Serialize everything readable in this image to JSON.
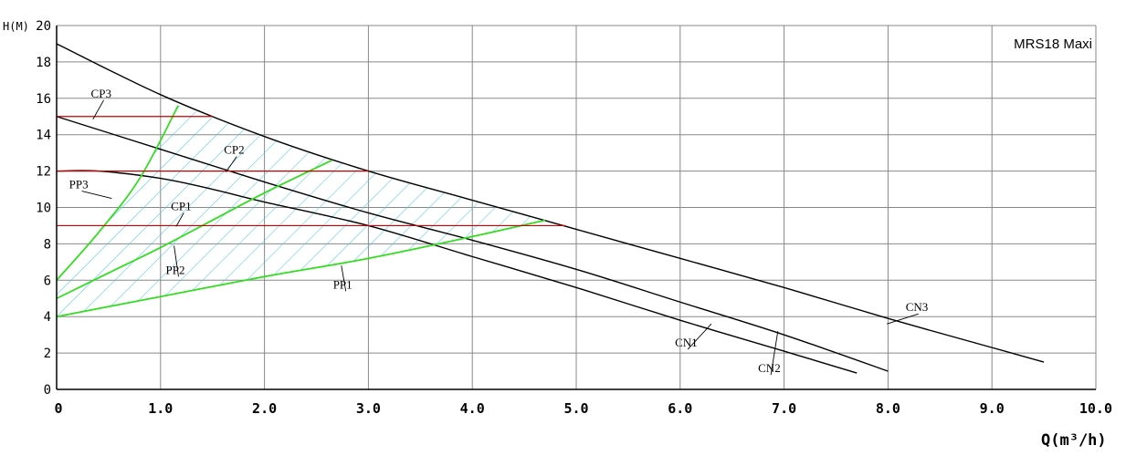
{
  "chart_data": {
    "type": "line",
    "title": "MRS18 Maxi",
    "xlabel": "Q(m³/h)",
    "ylabel": "H(M)",
    "xlim": [
      0,
      10
    ],
    "ylim": [
      0,
      20
    ],
    "x_ticks": [
      "0",
      "1.0",
      "2.0",
      "3.0",
      "4.0",
      "5.0",
      "6.0",
      "7.0",
      "8.0",
      "9.0",
      "10.0"
    ],
    "y_ticks": [
      "0",
      "2",
      "4",
      "6",
      "8",
      "10",
      "12",
      "14",
      "16",
      "18",
      "20"
    ],
    "grid": true,
    "colors": {
      "cn": "#000000",
      "pp": "#33dd22",
      "cp": "#cc0000",
      "hatch": "#55ccdd"
    },
    "series": [
      {
        "name": "CN3",
        "group": "cn",
        "x": [
          0,
          1,
          2,
          3,
          4,
          5,
          6,
          7,
          8,
          9,
          9.5
        ],
        "y": [
          19,
          16.2,
          13.9,
          12,
          10.4,
          8.8,
          7.2,
          5.6,
          3.9,
          2.3,
          1.5
        ]
      },
      {
        "name": "CN2",
        "group": "cn",
        "x": [
          0,
          1,
          2,
          3,
          4,
          5,
          6,
          7,
          8
        ],
        "y": [
          15,
          13.2,
          11.4,
          9.7,
          8.2,
          6.6,
          4.8,
          3,
          1
        ]
      },
      {
        "name": "CN1",
        "group": "cn",
        "x": [
          0,
          0.4,
          1,
          1.5,
          2,
          3,
          4,
          5,
          6,
          7,
          7.7
        ],
        "y": [
          12,
          12,
          11.6,
          11,
          10.3,
          9,
          7.3,
          5.6,
          3.8,
          2.1,
          0.9
        ]
      },
      {
        "name": "PP3",
        "group": "pp",
        "x": [
          0,
          0.4,
          0.8,
          1.17
        ],
        "y": [
          6,
          8.6,
          11.6,
          15.6
        ]
      },
      {
        "name": "PP2",
        "group": "pp",
        "x": [
          0,
          0.5,
          1,
          1.5,
          2,
          2.65
        ],
        "y": [
          5,
          6.4,
          7.8,
          9.3,
          10.8,
          12.6
        ]
      },
      {
        "name": "PP1",
        "group": "pp",
        "x": [
          0,
          1,
          2,
          3,
          4,
          4.7
        ],
        "y": [
          4,
          5.1,
          6.2,
          7.2,
          8.4,
          9.3
        ]
      },
      {
        "name": "CP3",
        "group": "cp",
        "x": [
          0,
          1.5
        ],
        "y": [
          15,
          15
        ]
      },
      {
        "name": "CP2",
        "group": "cp",
        "x": [
          0,
          3
        ],
        "y": [
          12,
          12
        ]
      },
      {
        "name": "CP1",
        "group": "cp",
        "x": [
          0,
          4.9
        ],
        "y": [
          9,
          9
        ]
      }
    ],
    "labels": [
      {
        "text": "CP3",
        "x": 0.33,
        "y": 16.05,
        "target": [
          0.35,
          14.85
        ]
      },
      {
        "text": "CP2",
        "x": 1.61,
        "y": 12.95,
        "target": [
          1.63,
          11.95
        ]
      },
      {
        "text": "CP1",
        "x": 1.1,
        "y": 9.85,
        "target": [
          1.15,
          8.95
        ]
      },
      {
        "text": "PP3",
        "x": 0.12,
        "y": 11.05,
        "target": [
          0.53,
          10.5
        ]
      },
      {
        "text": "PP2",
        "x": 1.05,
        "y": 6.35,
        "target": [
          1.13,
          7.9
        ]
      },
      {
        "text": "PP1",
        "x": 2.66,
        "y": 5.55,
        "target": [
          2.74,
          6.8
        ]
      },
      {
        "text": "CN1",
        "x": 5.95,
        "y": 2.35,
        "target": [
          6.3,
          3.6
        ]
      },
      {
        "text": "CN2",
        "x": 6.75,
        "y": 0.95,
        "target": [
          6.94,
          3.2
        ]
      },
      {
        "text": "CN3",
        "x": 8.17,
        "y": 4.3,
        "target": [
          7.99,
          3.6
        ]
      }
    ]
  }
}
